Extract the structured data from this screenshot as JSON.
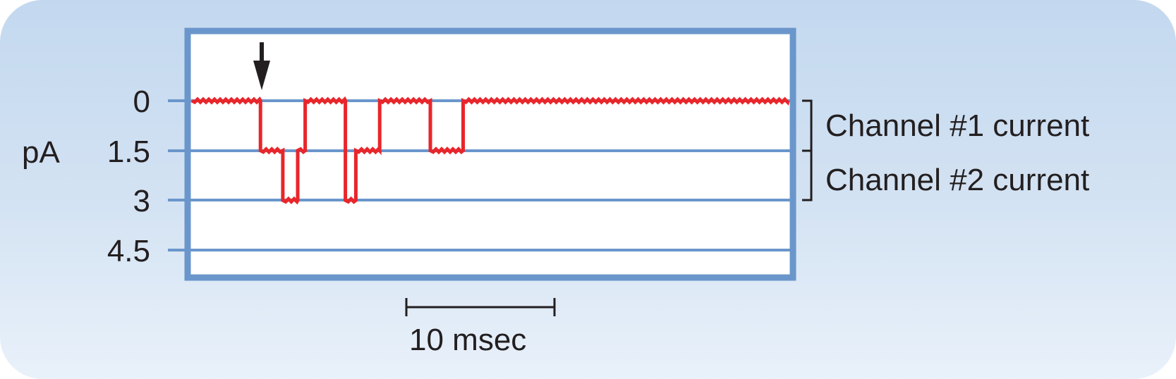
{
  "figure": {
    "y_unit_label": "pA",
    "y_ticks": [
      "0",
      "1.5",
      "3",
      "4.5"
    ],
    "scale_bar_label": "10 msec",
    "bracket_labels": [
      "Channel #1 current",
      "Channel #2 current"
    ]
  },
  "chart_data": {
    "type": "line",
    "title": "",
    "xlabel": "",
    "ylabel": "pA",
    "y_inverted": true,
    "ylim": [
      0,
      4.5
    ],
    "y_ticks": [
      0,
      1.5,
      3,
      4.5
    ],
    "x_units": "msec",
    "xlim": [
      0,
      40
    ],
    "scale_bar_msec": 10,
    "grid": true,
    "series": [
      {
        "color": "#e8262b",
        "points": [
          [
            0,
            0
          ],
          [
            4.6,
            0
          ],
          [
            4.6,
            1.5
          ],
          [
            6.1,
            1.5
          ],
          [
            6.1,
            3
          ],
          [
            7.1,
            3
          ],
          [
            7.1,
            1.5
          ],
          [
            7.6,
            1.5
          ],
          [
            7.6,
            0
          ],
          [
            10.3,
            0
          ],
          [
            10.3,
            3
          ],
          [
            11.0,
            3
          ],
          [
            11.0,
            1.5
          ],
          [
            12.6,
            1.5
          ],
          [
            12.6,
            0
          ],
          [
            16.0,
            0
          ],
          [
            16.0,
            1.5
          ],
          [
            18.2,
            1.5
          ],
          [
            18.2,
            0
          ],
          [
            40,
            0
          ]
        ]
      }
    ],
    "annotations": [
      "arrow marking channel opening onset"
    ],
    "colors": {
      "axes": "#6a96cb",
      "trace": "#e8262b",
      "text": "#231f20"
    }
  }
}
